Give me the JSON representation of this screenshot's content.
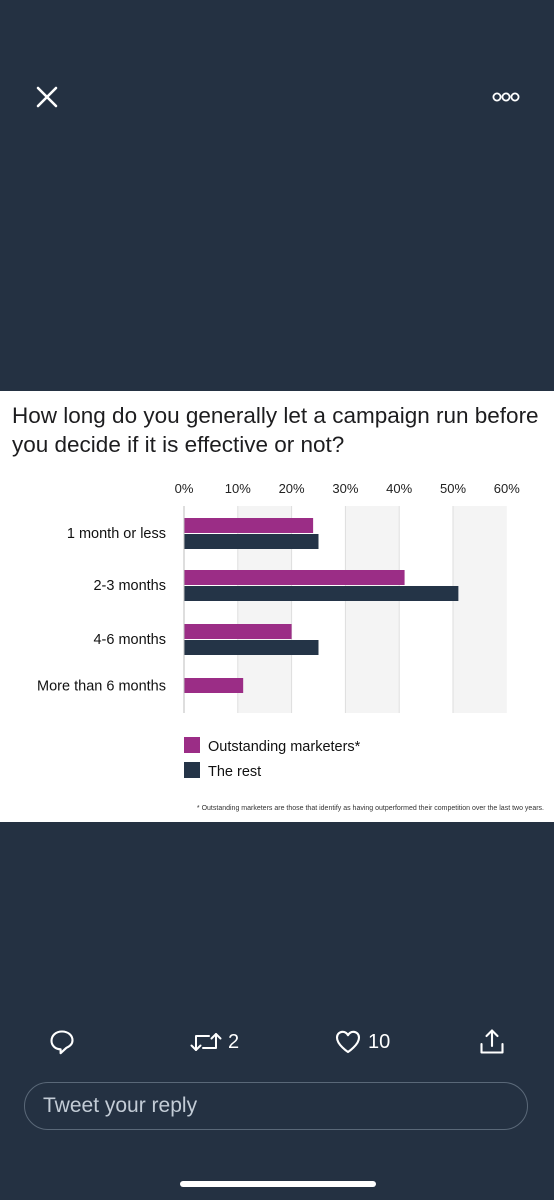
{
  "viewer": {
    "close_icon": "close-icon",
    "more_icon": "more-options-icon"
  },
  "chart_data": {
    "type": "bar",
    "orientation": "horizontal",
    "title": "How long do you generally let a campaign run before you decide if it is effective or not?",
    "categories": [
      "1 month or less",
      "2-3 months",
      "4-6 months",
      "More than 6 months"
    ],
    "series": [
      {
        "name": "Outstanding marketers*",
        "color": "#9b2d86",
        "values": [
          24,
          41,
          20,
          11
        ]
      },
      {
        "name": "The rest",
        "color": "#243447",
        "values": [
          25,
          51,
          25,
          null
        ]
      }
    ],
    "xticks": [
      "0%",
      "10%",
      "20%",
      "30%",
      "40%",
      "50%",
      "60%"
    ],
    "xlim": [
      0,
      60
    ],
    "grid": true,
    "legend_position": "bottom-left",
    "footnote": "* Outstanding marketers are those that identify as having outperformed their competition over the last two years."
  },
  "actions": {
    "reply_icon": "reply-icon",
    "retweet_icon": "retweet-icon",
    "retweet_count": "2",
    "like_icon": "heart-icon",
    "like_count": "10",
    "share_icon": "share-icon"
  },
  "reply": {
    "placeholder": "Tweet your reply"
  }
}
